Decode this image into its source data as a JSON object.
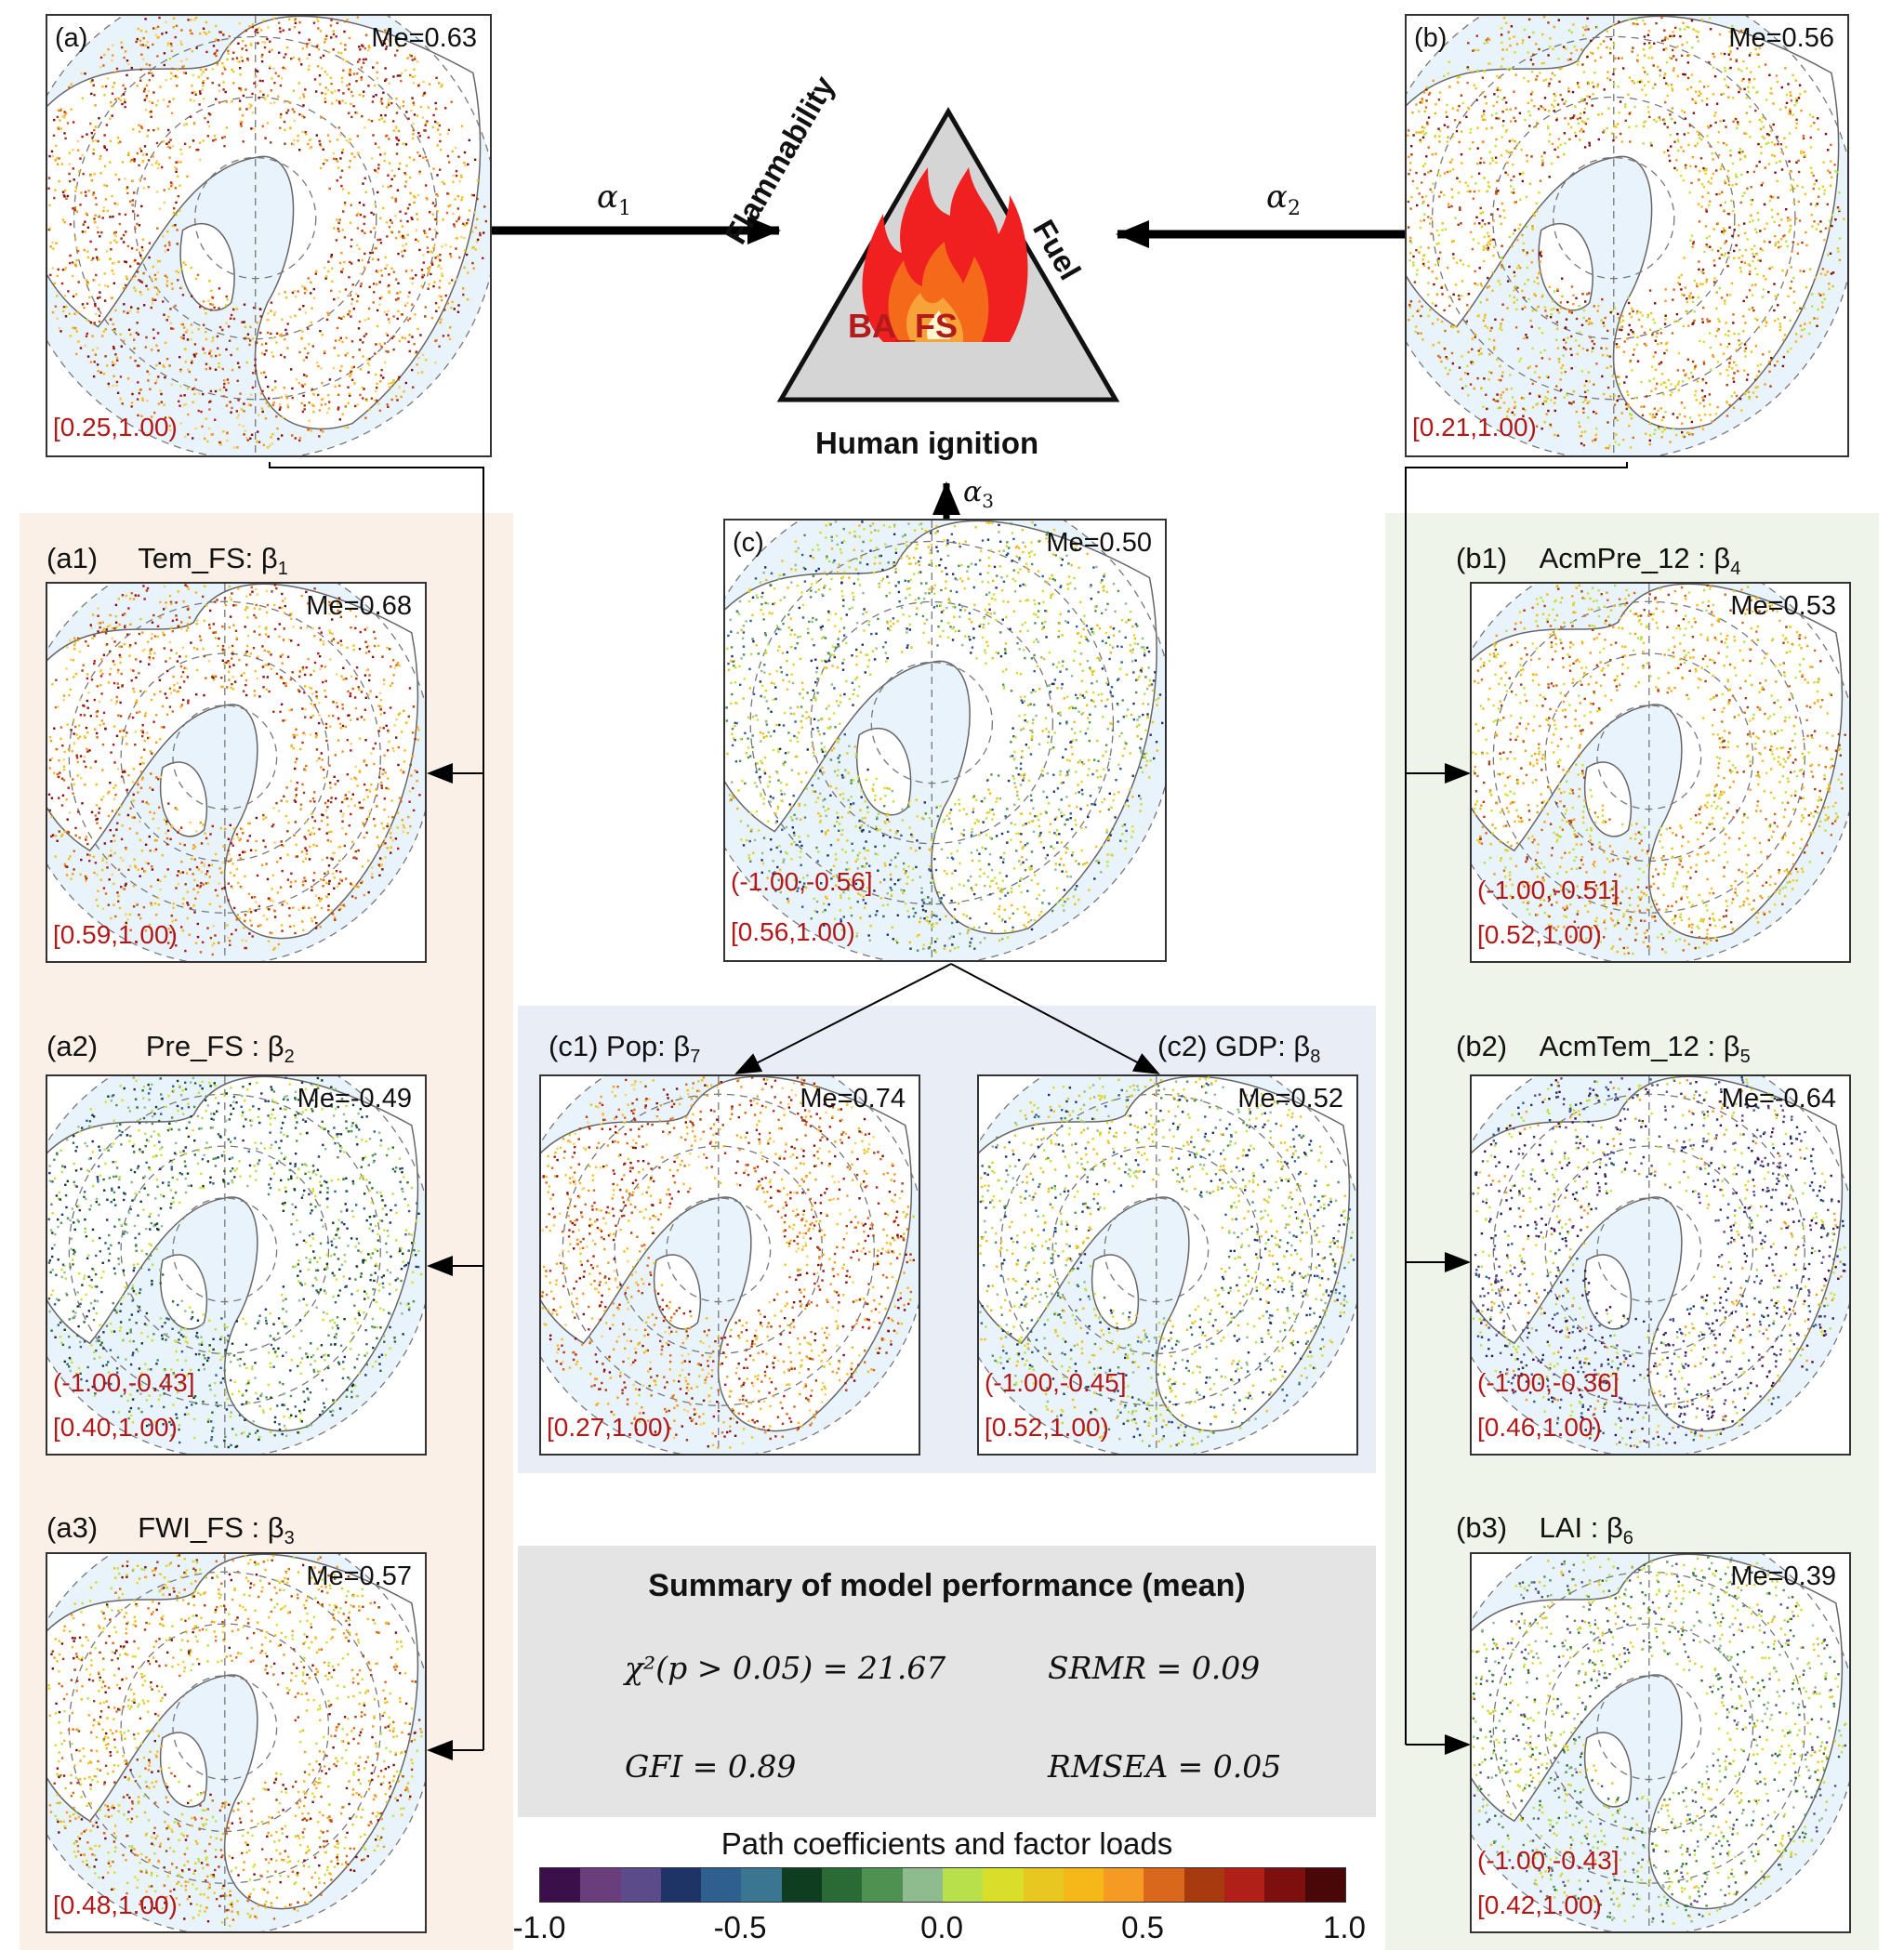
{
  "triangle": {
    "left_side": "Flammability",
    "right_side": "Fuel",
    "center": "BA_FS",
    "bottom": "Human ignition"
  },
  "arrows": {
    "alpha1": "α",
    "alpha1_sub": "1",
    "alpha2": "α",
    "alpha2_sub": "2",
    "alpha3": "α",
    "alpha3_sub": "3"
  },
  "panels": {
    "a": {
      "label": "(a)",
      "me": "Me=0.63",
      "ranges": [
        "[0.25,1.00)"
      ]
    },
    "b": {
      "label": "(b)",
      "me": "Me=0.56",
      "ranges": [
        "[0.21,1.00)"
      ]
    },
    "c": {
      "label": "(c)",
      "me": "Me=0.50",
      "ranges": [
        "(-1.00,-0.56]",
        "[0.56,1.00)"
      ]
    },
    "a1": {
      "label": "(a1)",
      "title": "Tem_FS: β",
      "sub": "1",
      "me": "Me=0.68",
      "ranges": [
        "[0.59,1.00)"
      ]
    },
    "a2": {
      "label": "(a2)",
      "title": "Pre_FS : β",
      "sub": "2",
      "me": "Me=-0.49",
      "ranges": [
        "(-1.00,-0.43]",
        "[0.40,1.00)"
      ]
    },
    "a3": {
      "label": "(a3)",
      "title": "FWI_FS : β",
      "sub": "3",
      "me": "Me=0.57",
      "ranges": [
        "[0.48,1.00)"
      ]
    },
    "b1": {
      "label": "(b1)",
      "title": "AcmPre_12 : β",
      "sub": "4",
      "me": "Me=0.53",
      "ranges": [
        "(-1.00,-0.51]",
        "[0.52,1.00)"
      ]
    },
    "b2": {
      "label": "(b2)",
      "title": "AcmTem_12 : β",
      "sub": "5",
      "me": "Me=-0.64",
      "ranges": [
        "(-1.00,-0.36]",
        "[0.46,1.00)"
      ]
    },
    "b3": {
      "label": "(b3)",
      "title": "LAI : β",
      "sub": "6",
      "me": "Me=0.39",
      "ranges": [
        "(-1.00,-0.43]",
        "[0.42,1.00)"
      ]
    },
    "c1": {
      "label": "(c1)",
      "title": "Pop: β",
      "sub": "7",
      "me": "Me=0.74",
      "ranges": [
        "[0.27,1.00)"
      ]
    },
    "c2": {
      "label": "(c2)",
      "title": "GDP: β",
      "sub": "8",
      "me": "Me=0.52",
      "ranges": [
        "(-1.00,-0.45]",
        "[0.52,1.00)"
      ]
    }
  },
  "summary": {
    "title": "Summary of  model performance (mean)",
    "chi2": "χ²(p > 0.05) = 21.67",
    "srmr": "SRMR  = 0.09",
    "gfi": "GFI  =  0.89",
    "rmsea": "RMSEA  = 0.05"
  },
  "colorbar": {
    "title": "Path coefficients and factor loads",
    "ticks": [
      "-1.0",
      "-0.5",
      "0.0",
      "0.5",
      "1.0"
    ],
    "colors": [
      "#3b0f4a",
      "#6a3d7d",
      "#5b4b8a",
      "#1f3466",
      "#2e5f8f",
      "#3a7591",
      "#0f3d20",
      "#2a6b35",
      "#4f9151",
      "#8fbc8f",
      "#b8e04a",
      "#d9de2a",
      "#e8c820",
      "#f5b818",
      "#f59a22",
      "#d9671c",
      "#a83a10",
      "#b01f18",
      "#7d0f0f",
      "#4a0707"
    ]
  }
}
